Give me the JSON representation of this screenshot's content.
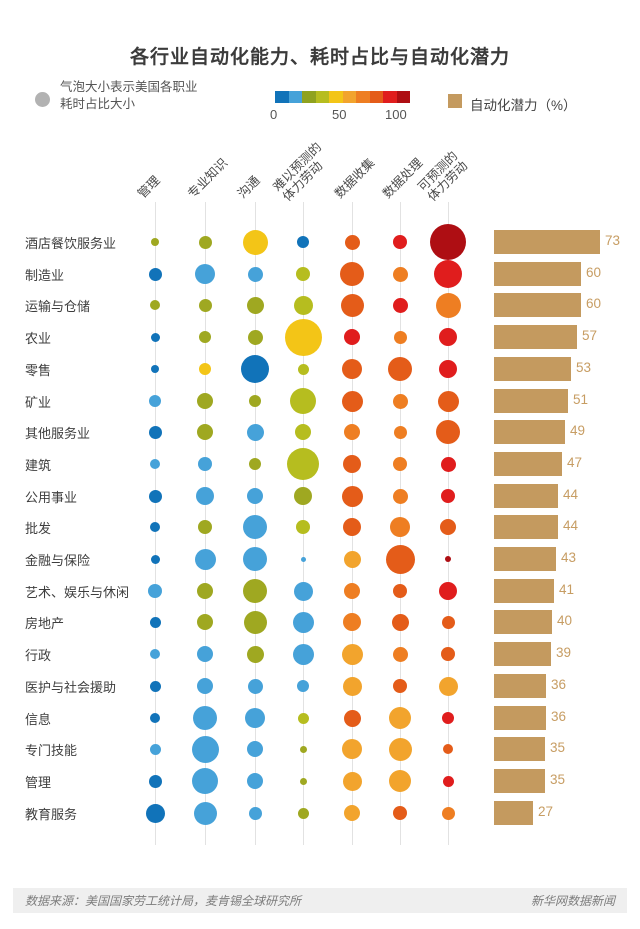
{
  "title": "各行业自动化能力、耗时占比与自动化潜力",
  "legend": {
    "bubble_line1": "气泡大小表示美国各职业",
    "bubble_line2": "耗时占比大小",
    "scale_ticks": [
      "0",
      "50",
      "100"
    ],
    "potential_label": "自动化潜力（%）",
    "potential_color": "#c49a5f",
    "bubble_swatch_color": "#b2b2b2"
  },
  "palette": {
    "b": "#1173b9",
    "lb": "#46a2d9",
    "ol": "#9fa821",
    "yg": "#b6bd1f",
    "y": "#f3c517",
    "yo": "#f2a42d",
    "o": "#ee7e22",
    "do": "#e45c19",
    "r": "#e01d1d",
    "dr": "#ae0e13"
  },
  "footer": {
    "source": "数据来源：美国国家劳工统计局，麦肯锡全球研究所",
    "credit": "新华网数据新闻"
  },
  "chart_data": {
    "type": "bubble-matrix+bar",
    "title": "各行业自动化能力、耗时占比与自动化潜力",
    "bar_series_name": "自动化潜力（%）",
    "color_scale": {
      "ticks": [
        0,
        50,
        100
      ],
      "colors": [
        "#1173b9",
        "#46a2d9",
        "#8fa21f",
        "#b6bd1f",
        "#f3c517",
        "#f2a42d",
        "#ee7e22",
        "#e45c19",
        "#e01d1d",
        "#ae0e13"
      ]
    },
    "bubble_size_meaning": "气泡大小表示美国各职业耗时占比大小",
    "bubble_units": "diameter_px_as_drawn",
    "columns": [
      "管理",
      "专业知识",
      "沟通",
      "难以预测的体力劳动",
      "数据收集",
      "数据处理",
      "可预测的体力劳动"
    ],
    "column_lines": [
      [
        "管理"
      ],
      [
        "专业知识"
      ],
      [
        "沟通"
      ],
      [
        "难以预测的",
        "体力劳动"
      ],
      [
        "数据收集"
      ],
      [
        "数据处理"
      ],
      [
        "可预测的",
        "体力劳动"
      ]
    ],
    "rows": [
      {
        "industry": "酒店餐饮服务业",
        "potential": 73,
        "bubbles": [
          [
            8,
            "ol"
          ],
          [
            13,
            "ol"
          ],
          [
            25,
            "y"
          ],
          [
            12,
            "b"
          ],
          [
            15,
            "do"
          ],
          [
            14,
            "r"
          ],
          [
            36,
            "dr"
          ]
        ]
      },
      {
        "industry": "制造业",
        "potential": 60,
        "bubbles": [
          [
            13,
            "b"
          ],
          [
            20,
            "lb"
          ],
          [
            15,
            "lb"
          ],
          [
            14,
            "yg"
          ],
          [
            24,
            "do"
          ],
          [
            15,
            "o"
          ],
          [
            28,
            "r"
          ]
        ]
      },
      {
        "industry": "运输与仓储",
        "potential": 60,
        "bubbles": [
          [
            10,
            "ol"
          ],
          [
            13,
            "ol"
          ],
          [
            17,
            "ol"
          ],
          [
            19,
            "yg"
          ],
          [
            23,
            "do"
          ],
          [
            15,
            "r"
          ],
          [
            25,
            "o"
          ]
        ]
      },
      {
        "industry": "农业",
        "potential": 57,
        "bubbles": [
          [
            9,
            "b"
          ],
          [
            12,
            "ol"
          ],
          [
            15,
            "ol"
          ],
          [
            37,
            "y"
          ],
          [
            16,
            "r"
          ],
          [
            13,
            "o"
          ],
          [
            18,
            "r"
          ]
        ]
      },
      {
        "industry": "零售",
        "potential": 53,
        "bubbles": [
          [
            8,
            "b"
          ],
          [
            12,
            "y"
          ],
          [
            28,
            "b"
          ],
          [
            11,
            "yg"
          ],
          [
            20,
            "do"
          ],
          [
            24,
            "do"
          ],
          [
            18,
            "r"
          ]
        ]
      },
      {
        "industry": "矿业",
        "potential": 51,
        "bubbles": [
          [
            12,
            "lb"
          ],
          [
            16,
            "ol"
          ],
          [
            12,
            "ol"
          ],
          [
            26,
            "yg"
          ],
          [
            21,
            "do"
          ],
          [
            15,
            "o"
          ],
          [
            21,
            "do"
          ]
        ]
      },
      {
        "industry": "其他服务业",
        "potential": 49,
        "bubbles": [
          [
            13,
            "b"
          ],
          [
            16,
            "ol"
          ],
          [
            17,
            "lb"
          ],
          [
            16,
            "yg"
          ],
          [
            16,
            "o"
          ],
          [
            13,
            "o"
          ],
          [
            24,
            "do"
          ]
        ]
      },
      {
        "industry": "建筑",
        "potential": 47,
        "bubbles": [
          [
            10,
            "lb"
          ],
          [
            14,
            "lb"
          ],
          [
            12,
            "ol"
          ],
          [
            32,
            "yg"
          ],
          [
            18,
            "do"
          ],
          [
            14,
            "o"
          ],
          [
            15,
            "r"
          ]
        ]
      },
      {
        "industry": "公用事业",
        "potential": 44,
        "bubbles": [
          [
            13,
            "b"
          ],
          [
            18,
            "lb"
          ],
          [
            16,
            "lb"
          ],
          [
            18,
            "ol"
          ],
          [
            21,
            "do"
          ],
          [
            15,
            "o"
          ],
          [
            14,
            "r"
          ]
        ]
      },
      {
        "industry": "批发",
        "potential": 44,
        "bubbles": [
          [
            10,
            "b"
          ],
          [
            14,
            "ol"
          ],
          [
            24,
            "lb"
          ],
          [
            14,
            "yg"
          ],
          [
            18,
            "do"
          ],
          [
            20,
            "o"
          ],
          [
            16,
            "do"
          ]
        ]
      },
      {
        "industry": "金融与保险",
        "potential": 43,
        "bubbles": [
          [
            9,
            "b"
          ],
          [
            21,
            "lb"
          ],
          [
            24,
            "lb"
          ],
          [
            5,
            "lb"
          ],
          [
            17,
            "yo"
          ],
          [
            29,
            "do"
          ],
          [
            6,
            "dr"
          ]
        ]
      },
      {
        "industry": "艺术、娱乐与休闲",
        "potential": 41,
        "bubbles": [
          [
            14,
            "lb"
          ],
          [
            16,
            "ol"
          ],
          [
            24,
            "ol"
          ],
          [
            19,
            "lb"
          ],
          [
            16,
            "o"
          ],
          [
            14,
            "do"
          ],
          [
            18,
            "r"
          ]
        ]
      },
      {
        "industry": "房地产",
        "potential": 40,
        "bubbles": [
          [
            11,
            "b"
          ],
          [
            16,
            "ol"
          ],
          [
            23,
            "ol"
          ],
          [
            21,
            "lb"
          ],
          [
            18,
            "o"
          ],
          [
            17,
            "do"
          ],
          [
            13,
            "do"
          ]
        ]
      },
      {
        "industry": "行政",
        "potential": 39,
        "bubbles": [
          [
            10,
            "lb"
          ],
          [
            16,
            "lb"
          ],
          [
            17,
            "ol"
          ],
          [
            21,
            "lb"
          ],
          [
            21,
            "yo"
          ],
          [
            15,
            "o"
          ],
          [
            14,
            "do"
          ]
        ]
      },
      {
        "industry": "医护与社会援助",
        "potential": 36,
        "bubbles": [
          [
            11,
            "b"
          ],
          [
            16,
            "lb"
          ],
          [
            15,
            "lb"
          ],
          [
            12,
            "lb"
          ],
          [
            19,
            "yo"
          ],
          [
            14,
            "do"
          ],
          [
            19,
            "yo"
          ]
        ]
      },
      {
        "industry": "信息",
        "potential": 36,
        "bubbles": [
          [
            10,
            "b"
          ],
          [
            24,
            "lb"
          ],
          [
            20,
            "lb"
          ],
          [
            11,
            "yg"
          ],
          [
            17,
            "do"
          ],
          [
            22,
            "yo"
          ],
          [
            12,
            "r"
          ]
        ]
      },
      {
        "industry": "专门技能",
        "potential": 35,
        "bubbles": [
          [
            11,
            "lb"
          ],
          [
            27,
            "lb"
          ],
          [
            16,
            "lb"
          ],
          [
            7,
            "ol"
          ],
          [
            20,
            "yo"
          ],
          [
            23,
            "yo"
          ],
          [
            10,
            "do"
          ]
        ]
      },
      {
        "industry": "管理",
        "potential": 35,
        "bubbles": [
          [
            13,
            "b"
          ],
          [
            26,
            "lb"
          ],
          [
            16,
            "lb"
          ],
          [
            7,
            "ol"
          ],
          [
            19,
            "yo"
          ],
          [
            22,
            "yo"
          ],
          [
            11,
            "r"
          ]
        ]
      },
      {
        "industry": "教育服务",
        "potential": 27,
        "bubbles": [
          [
            19,
            "b"
          ],
          [
            23,
            "lb"
          ],
          [
            13,
            "lb"
          ],
          [
            11,
            "ol"
          ],
          [
            16,
            "yo"
          ],
          [
            14,
            "do"
          ],
          [
            13,
            "o"
          ]
        ]
      }
    ]
  }
}
